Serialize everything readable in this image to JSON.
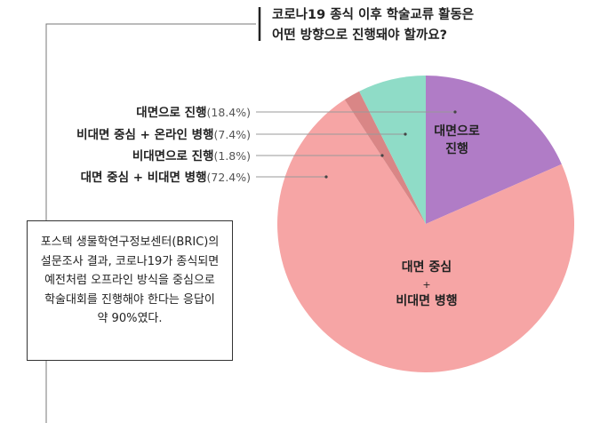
{
  "title_lines": [
    "코로나19 종식 이후 학술교류 활동은",
    "어떤 방향으로 진행돼야 할까요?"
  ],
  "note_lines": [
    "포스텍 생물학연구정보센터(BRIC)의",
    "설문조사 결과, 코로나19가 종식되면",
    "예전처럼 오프라인 방식을 중심으로",
    "학술대회를 진행해야 한다는 응답이",
    "약 90%였다."
  ],
  "chart_data": {
    "type": "pie",
    "unit": "%",
    "slices": [
      {
        "name": "대면으로 진행",
        "value": 18.4,
        "pct_label": "(18.4%)",
        "color": "#b07cc6",
        "inside_label": [
          "대면으로",
          "진행"
        ]
      },
      {
        "name": "대면 중심 + 비대면 병행",
        "value": 72.4,
        "pct_label": "(72.4%)",
        "color": "#f6a5a5",
        "inside_label": [
          "대면 중심",
          "+",
          "비대면 병행"
        ]
      },
      {
        "name": "비대면으로 진행",
        "value": 1.8,
        "pct_label": "(1.8%)",
        "color": "#d98686",
        "inside_label": []
      },
      {
        "name": "비대면 중심 + 온라인 병행",
        "value": 7.4,
        "pct_label": "(7.4%)",
        "color": "#8fdcc7",
        "inside_label": []
      }
    ],
    "legend_order": [
      "대면으로 진행",
      "비대면 중심 + 온라인 병행",
      "비대면으로 진행",
      "대면 중심 + 비대면 병행"
    ],
    "start_angle_deg": 0,
    "direction": "clockwise",
    "legend_placement": "left, with leader lines into slices"
  }
}
